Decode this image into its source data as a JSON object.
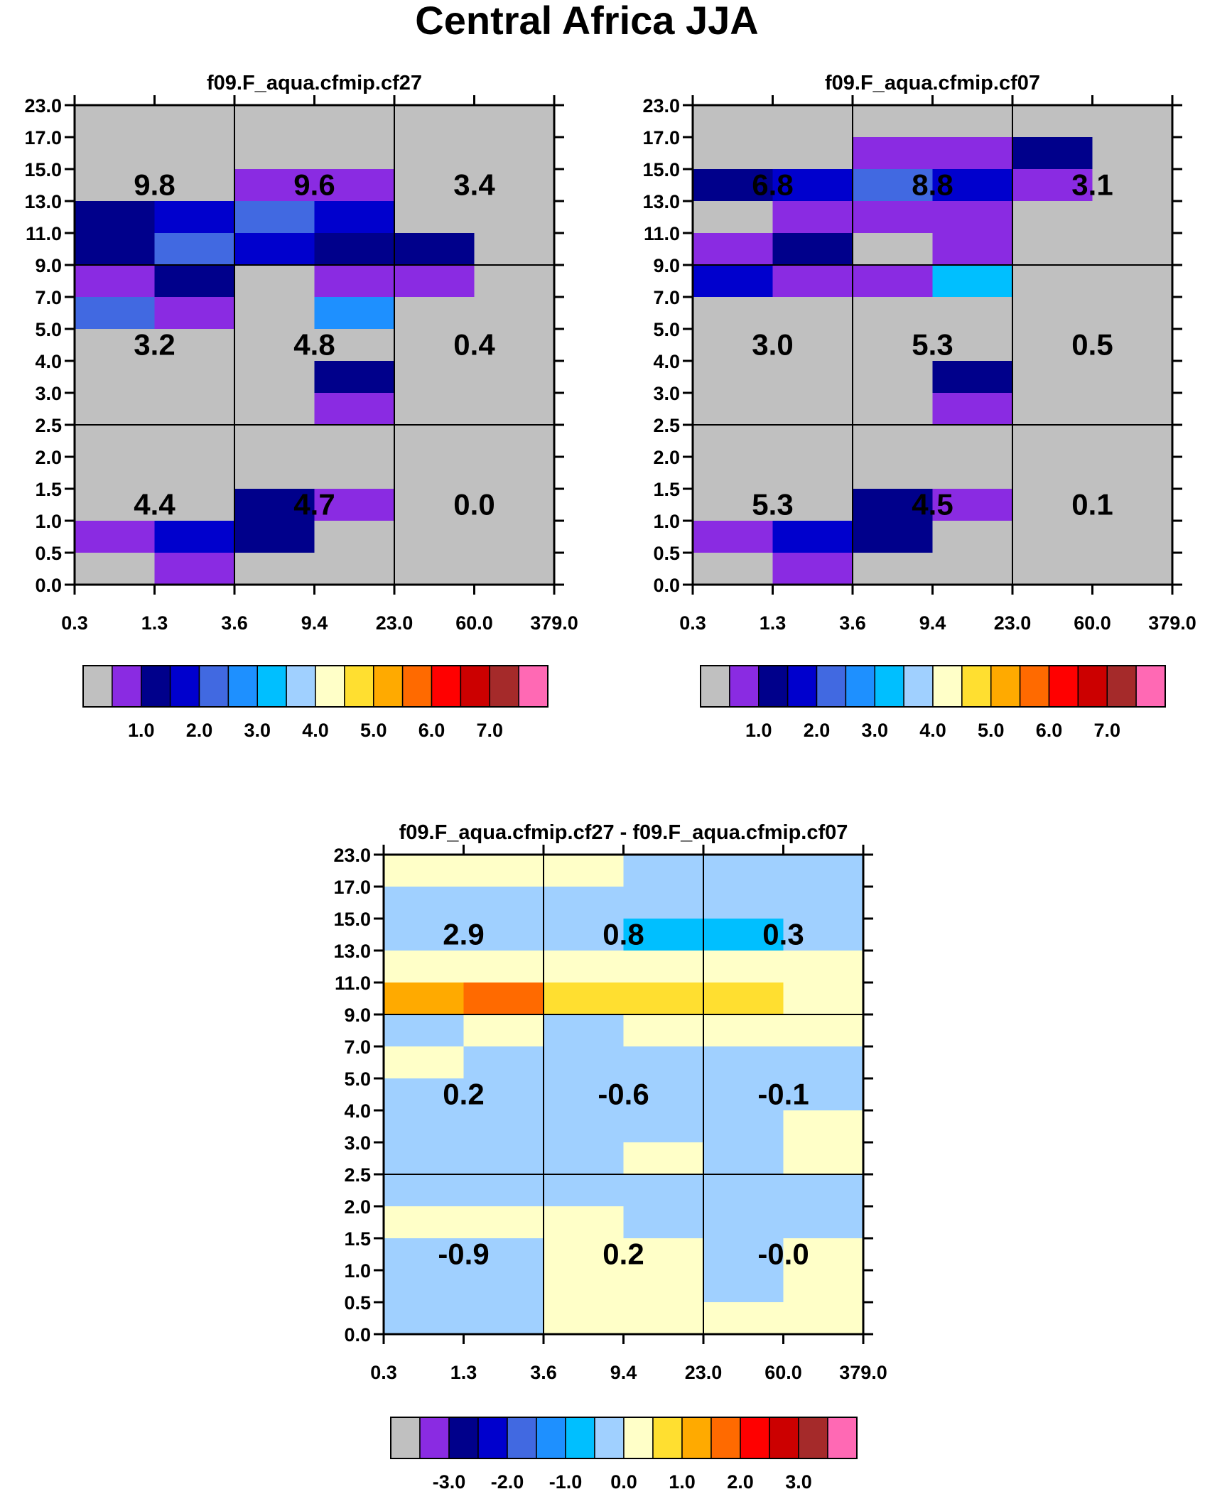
{
  "page_title": "Central Africa JJA",
  "colors": {
    "bg": "#ffffff",
    "cell_default": "#c0c0c0",
    "grid_line": "#000000"
  },
  "chart_data": [
    {
      "type": "heatmap",
      "title": "f09.F_aqua.cfmip.cf27",
      "x_ticks": [
        "0.3",
        "1.3",
        "3.6",
        "9.4",
        "23.0",
        "60.0",
        "379.0"
      ],
      "y_ticks": [
        "0.0",
        "0.5",
        "1.0",
        "1.5",
        "2.0",
        "2.5",
        "3.0",
        "4.0",
        "5.0",
        "7.0",
        "9.0",
        "11.0",
        "13.0",
        "15.0",
        "17.0",
        "23.0"
      ],
      "grid": [
        [
          0,
          0,
          0,
          0,
          0,
          0
        ],
        [
          0,
          0,
          0,
          0,
          0,
          0
        ],
        [
          0,
          0,
          1,
          1,
          0,
          0
        ],
        [
          2,
          3,
          4,
          3,
          0,
          0
        ],
        [
          2,
          4,
          3,
          2,
          2,
          0
        ],
        [
          1,
          2,
          0,
          1,
          1,
          0
        ],
        [
          4,
          1,
          0,
          5,
          0,
          0
        ],
        [
          0,
          0,
          0,
          0,
          0,
          0
        ],
        [
          0,
          0,
          0,
          2,
          0,
          0
        ],
        [
          0,
          0,
          0,
          1,
          0,
          0
        ],
        [
          0,
          0,
          0,
          0,
          0,
          0
        ],
        [
          0,
          0,
          0,
          0,
          0,
          0
        ],
        [
          0,
          0,
          2,
          1,
          0,
          0
        ],
        [
          1,
          3,
          2,
          0,
          0,
          0
        ],
        [
          0,
          1,
          0,
          0,
          0,
          0
        ]
      ],
      "sums": [
        {
          "value": "9.8",
          "col": 0,
          "row": 0
        },
        {
          "value": "9.6",
          "col": 1,
          "row": 0
        },
        {
          "value": "3.4",
          "col": 2,
          "row": 0
        },
        {
          "value": "3.2",
          "col": 0,
          "row": 1
        },
        {
          "value": "4.8",
          "col": 1,
          "row": 1
        },
        {
          "value": "0.4",
          "col": 2,
          "row": 1
        },
        {
          "value": "4.4",
          "col": 0,
          "row": 2
        },
        {
          "value": "4.7",
          "col": 1,
          "row": 2
        },
        {
          "value": "0.0",
          "col": 2,
          "row": 2
        }
      ],
      "colorbar": {
        "colors": [
          "#c0c0c0",
          "#8a2be2",
          "#00008b",
          "#0000cd",
          "#4169e1",
          "#1e90ff",
          "#00bfff",
          "#a0d0ff",
          "#ffffc8",
          "#ffdf30",
          "#ffaa00",
          "#ff6a00",
          "#ff0000",
          "#cc0000",
          "#a52a2a",
          "#ff69b4"
        ],
        "labels": [
          "1.0",
          "2.0",
          "3.0",
          "4.0",
          "5.0",
          "6.0",
          "7.0"
        ]
      }
    },
    {
      "type": "heatmap",
      "title": "f09.F_aqua.cfmip.cf07",
      "x_ticks": [
        "0.3",
        "1.3",
        "3.6",
        "9.4",
        "23.0",
        "60.0",
        "379.0"
      ],
      "y_ticks": [
        "0.0",
        "0.5",
        "1.0",
        "1.5",
        "2.0",
        "2.5",
        "3.0",
        "4.0",
        "5.0",
        "7.0",
        "9.0",
        "11.0",
        "13.0",
        "15.0",
        "17.0",
        "23.0"
      ],
      "grid": [
        [
          0,
          0,
          0,
          0,
          0,
          0
        ],
        [
          0,
          0,
          1,
          1,
          2,
          0
        ],
        [
          2,
          3,
          4,
          3,
          1,
          0
        ],
        [
          0,
          1,
          1,
          1,
          0,
          0
        ],
        [
          1,
          2,
          0,
          1,
          0,
          0
        ],
        [
          3,
          1,
          1,
          6,
          0,
          0
        ],
        [
          0,
          0,
          0,
          0,
          0,
          0
        ],
        [
          0,
          0,
          0,
          0,
          0,
          0
        ],
        [
          0,
          0,
          0,
          2,
          0,
          0
        ],
        [
          0,
          0,
          0,
          1,
          0,
          0
        ],
        [
          0,
          0,
          0,
          0,
          0,
          0
        ],
        [
          0,
          0,
          0,
          0,
          0,
          0
        ],
        [
          0,
          0,
          2,
          1,
          0,
          0
        ],
        [
          1,
          3,
          2,
          0,
          0,
          0
        ],
        [
          0,
          1,
          0,
          0,
          0,
          0
        ]
      ],
      "sums": [
        {
          "value": "6.8",
          "col": 0,
          "row": 0
        },
        {
          "value": "8.8",
          "col": 1,
          "row": 0
        },
        {
          "value": "3.1",
          "col": 2,
          "row": 0
        },
        {
          "value": "3.0",
          "col": 0,
          "row": 1
        },
        {
          "value": "5.3",
          "col": 1,
          "row": 1
        },
        {
          "value": "0.5",
          "col": 2,
          "row": 1
        },
        {
          "value": "5.3",
          "col": 0,
          "row": 2
        },
        {
          "value": "4.5",
          "col": 1,
          "row": 2
        },
        {
          "value": "0.1",
          "col": 2,
          "row": 2
        }
      ],
      "colorbar": {
        "colors": [
          "#c0c0c0",
          "#8a2be2",
          "#00008b",
          "#0000cd",
          "#4169e1",
          "#1e90ff",
          "#00bfff",
          "#a0d0ff",
          "#ffffc8",
          "#ffdf30",
          "#ffaa00",
          "#ff6a00",
          "#ff0000",
          "#cc0000",
          "#a52a2a",
          "#ff69b4"
        ],
        "labels": [
          "1.0",
          "2.0",
          "3.0",
          "4.0",
          "5.0",
          "6.0",
          "7.0"
        ]
      }
    },
    {
      "type": "heatmap",
      "title": "f09.F_aqua.cfmip.cf27 - f09.F_aqua.cfmip.cf07",
      "x_ticks": [
        "0.3",
        "1.3",
        "3.6",
        "9.4",
        "23.0",
        "60.0",
        "379.0"
      ],
      "y_ticks": [
        "0.0",
        "0.5",
        "1.0",
        "1.5",
        "2.0",
        "2.5",
        "3.0",
        "4.0",
        "5.0",
        "7.0",
        "9.0",
        "11.0",
        "13.0",
        "15.0",
        "17.0",
        "23.0"
      ],
      "grid": [
        [
          8,
          8,
          8,
          7,
          7,
          7
        ],
        [
          7,
          7,
          7,
          7,
          7,
          7
        ],
        [
          7,
          7,
          7,
          6,
          6,
          7
        ],
        [
          8,
          8,
          8,
          8,
          8,
          8
        ],
        [
          10,
          11,
          9,
          9,
          9,
          8
        ],
        [
          7,
          8,
          7,
          8,
          8,
          8
        ],
        [
          8,
          7,
          7,
          7,
          7,
          7
        ],
        [
          7,
          7,
          7,
          7,
          7,
          7
        ],
        [
          7,
          7,
          7,
          7,
          7,
          8
        ],
        [
          7,
          7,
          7,
          8,
          7,
          8
        ],
        [
          7,
          7,
          7,
          7,
          7,
          7
        ],
        [
          8,
          8,
          8,
          7,
          7,
          7
        ],
        [
          7,
          7,
          8,
          8,
          7,
          8
        ],
        [
          7,
          7,
          8,
          8,
          7,
          8
        ],
        [
          7,
          7,
          8,
          8,
          8,
          8
        ]
      ],
      "sums": [
        {
          "value": "2.9",
          "col": 0,
          "row": 0
        },
        {
          "value": "0.8",
          "col": 1,
          "row": 0
        },
        {
          "value": "0.3",
          "col": 2,
          "row": 0
        },
        {
          "value": "0.2",
          "col": 0,
          "row": 1
        },
        {
          "value": "-0.6",
          "col": 1,
          "row": 1
        },
        {
          "value": "-0.1",
          "col": 2,
          "row": 1
        },
        {
          "value": "-0.9",
          "col": 0,
          "row": 2
        },
        {
          "value": "0.2",
          "col": 1,
          "row": 2
        },
        {
          "value": "-0.0",
          "col": 2,
          "row": 2
        }
      ],
      "colorbar": {
        "colors": [
          "#c0c0c0",
          "#8a2be2",
          "#00008b",
          "#0000cd",
          "#4169e1",
          "#1e90ff",
          "#00bfff",
          "#a0d0ff",
          "#ffffc8",
          "#ffdf30",
          "#ffaa00",
          "#ff6a00",
          "#ff0000",
          "#cc0000",
          "#a52a2a",
          "#ff69b4"
        ],
        "labels": [
          "-3.0",
          "-2.0",
          "-1.0",
          "0.0",
          "1.0",
          "2.0",
          "3.0"
        ]
      }
    }
  ]
}
